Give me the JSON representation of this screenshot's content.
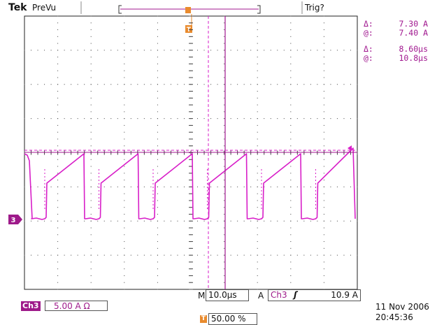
{
  "header": {
    "brand_bold": "Tek",
    "mode": "PreVu",
    "trigger_status": "Trig?"
  },
  "cursors": {
    "row1_symbol": "Δ:",
    "row1_value": "7.30 A",
    "row2_symbol": "@:",
    "row2_value": "7.40 A",
    "row3_symbol": "Δ:",
    "row3_value": "8.60µs",
    "row4_symbol": "@:",
    "row4_value": "10.8µs"
  },
  "channel_marker": "3",
  "horizontal": {
    "m_label": "M",
    "timebase": "10.0µs",
    "a_label": "A",
    "trigger_source": "Ch3",
    "slope_icon": "rising-edge-icon",
    "trigger_level": "10.9 A"
  },
  "channel_settings": {
    "badge": "Ch3",
    "scale": "5.00 A Ω"
  },
  "trigger_position": {
    "icon_letter": "T",
    "value": "50.00 %"
  },
  "datetime": {
    "date": "11 Nov 2006",
    "time": "20:45:36"
  },
  "colors": {
    "waveform": "#d81ec8",
    "cursor": "#a0178f",
    "trigger_marker": "#e98b2e",
    "graticule": "#333333"
  }
}
